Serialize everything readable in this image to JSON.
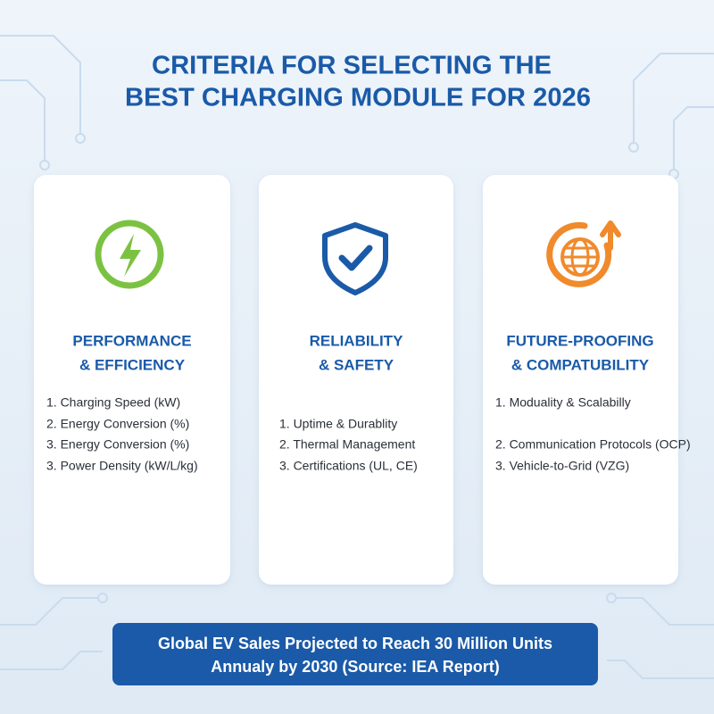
{
  "header": {
    "title": [
      "CRITERIA FOR SELECTING THE",
      "BEST CHARGING MODULE FOR 2026"
    ]
  },
  "cards": [
    {
      "heading": [
        "PERFORMANCE",
        "& EFFICIENCY"
      ],
      "items": [
        "1. Charging Speed (kW)",
        "2. Energy Conversion (%)",
        "3. Energy Conversion (%)",
        "3. Power Density (kW/L/kg)"
      ]
    },
    {
      "heading": [
        "RELIABILITY",
        "& SAFETY"
      ],
      "items": [
        "1. Uptime & Durablity",
        "2. Thermal Management",
        "3. Certifications (UL, CE)"
      ]
    },
    {
      "heading": [
        "FUTURE-PROOFING",
        "& COMPATUBILITY"
      ],
      "items": [
        "1. Moduality & Scalabilly",
        "2. Communication Protocols (OCP)",
        "3. Vehicle-to-Grid (VZG)"
      ]
    }
  ],
  "footer": {
    "lines": [
      "Global EV Sales Projected to Reach 30 Million Units",
      "Annualy by 2030 (Source: IEA Report)"
    ]
  }
}
